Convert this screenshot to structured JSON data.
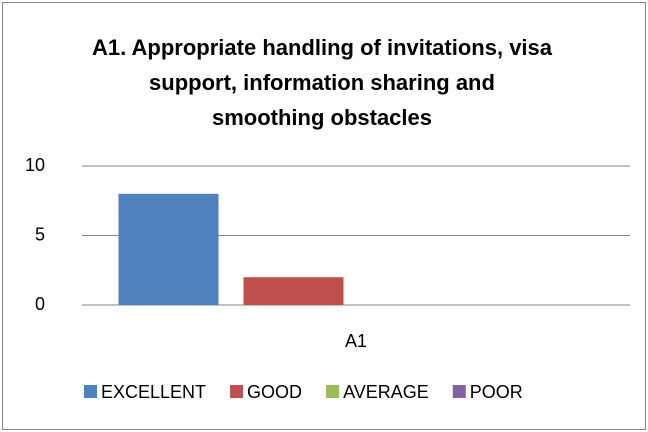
{
  "chart_data": {
    "type": "bar",
    "title": "A1. Appropriate handling of invitations, visa support, information sharing and smoothing obstacles",
    "categories": [
      "A1"
    ],
    "series": [
      {
        "name": "EXCELLENT",
        "color": "#4f81bd",
        "values": [
          8
        ]
      },
      {
        "name": "GOOD",
        "color": "#c0504d",
        "values": [
          2
        ]
      },
      {
        "name": "AVERAGE",
        "color": "#9bbb59",
        "values": [
          0
        ]
      },
      {
        "name": "POOR",
        "color": "#8064a2",
        "values": [
          0
        ]
      }
    ],
    "ylim": [
      0,
      10
    ],
    "yticks": [
      0,
      5,
      10
    ],
    "grid": true,
    "legend": "bottom"
  }
}
